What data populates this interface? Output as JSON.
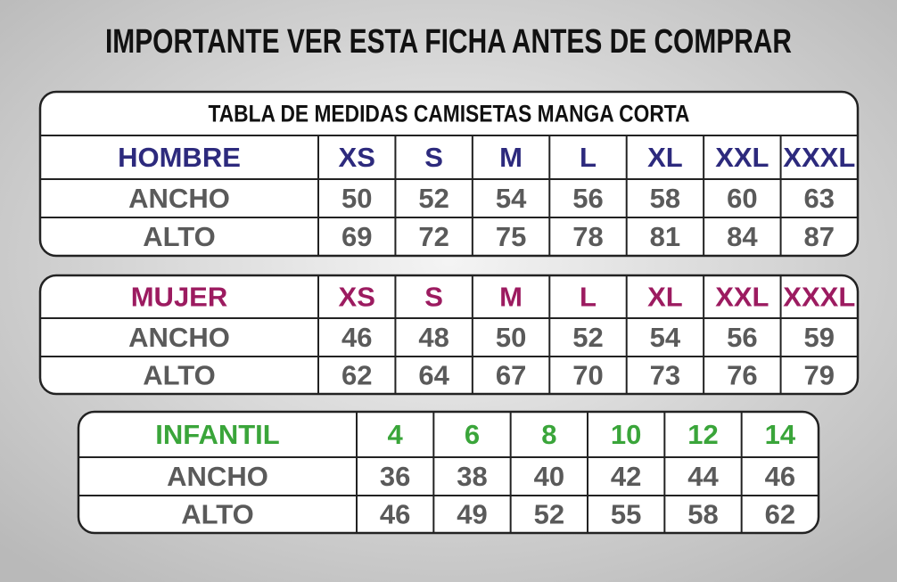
{
  "title": "IMPORTANTE VER ESTA FICHA ANTES DE COMPRAR",
  "tables": [
    {
      "caption": "TABLA DE MEDIDAS CAMISETAS MANGA CORTA",
      "header_color": "#2d2a7d",
      "header": [
        "HOMBRE",
        "XS",
        "S",
        "M",
        "L",
        "XL",
        "XXL",
        "XXXL"
      ],
      "rows": [
        [
          "ANCHO",
          50,
          52,
          54,
          56,
          58,
          60,
          63
        ],
        [
          "ALTO",
          69,
          72,
          75,
          78,
          81,
          84,
          87
        ]
      ]
    },
    {
      "header_color": "#9c1b60",
      "header": [
        "MUJER",
        "XS",
        "S",
        "M",
        "L",
        "XL",
        "XXL",
        "XXXL"
      ],
      "rows": [
        [
          "ANCHO",
          46,
          48,
          50,
          52,
          54,
          56,
          59
        ],
        [
          "ALTO",
          62,
          64,
          67,
          70,
          73,
          76,
          79
        ]
      ]
    },
    {
      "header_color": "#3aa53a",
      "header": [
        "INFANTIL",
        4,
        6,
        8,
        10,
        12,
        14
      ],
      "rows": [
        [
          "ANCHO",
          36,
          38,
          40,
          42,
          44,
          46
        ],
        [
          "ALTO",
          46,
          49,
          52,
          55,
          58,
          62
        ]
      ]
    }
  ]
}
